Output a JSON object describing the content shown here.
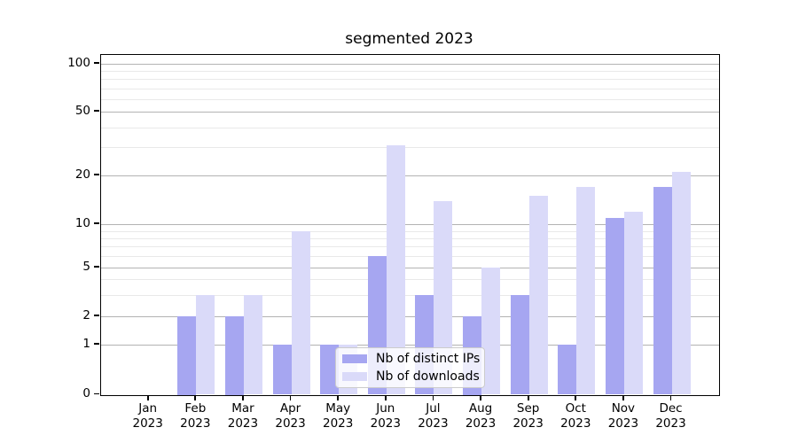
{
  "chart_data": {
    "type": "bar",
    "title": "segmented 2023",
    "categories": [
      "Jan",
      "Feb",
      "Mar",
      "Apr",
      "May",
      "Jun",
      "Jul",
      "Aug",
      "Sep",
      "Oct",
      "Nov",
      "Dec"
    ],
    "year_label": "2023",
    "series": [
      {
        "name": "Nb of distinct IPs",
        "color": "#a6a6f1",
        "values": [
          0,
          2,
          2,
          1,
          1,
          6,
          3,
          2,
          3,
          1,
          11,
          17
        ]
      },
      {
        "name": "Nb of downloads",
        "color": "#dadaf9",
        "values": [
          0,
          3,
          3,
          9,
          1,
          31,
          14,
          5,
          15,
          17,
          12,
          21
        ]
      }
    ],
    "yscale": "segmented (linear 0-1, log-like segments above)",
    "y_ticks": [
      0,
      1,
      2,
      5,
      10,
      20,
      50,
      100
    ],
    "y_minor_gridlines": [
      3,
      4,
      6,
      7,
      8,
      9,
      30,
      40,
      60,
      70,
      80,
      90
    ],
    "ylim": [
      0,
      112
    ],
    "grid": "horizontal major and minor gridlines",
    "legend_position": "inside lower-center",
    "colors": {
      "major_grid": "#b3b3b3",
      "minor_grid": "#e9e9e9",
      "axis": "#000000",
      "background": "#ffffff"
    }
  }
}
